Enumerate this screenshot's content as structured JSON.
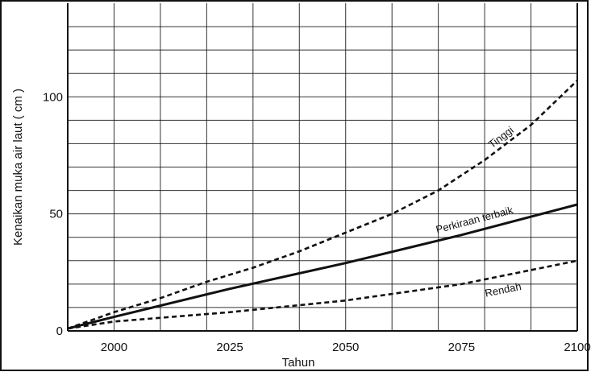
{
  "chart_data": {
    "type": "line",
    "title": "",
    "xlabel": "Tahun",
    "ylabel": "Kenaikan muka air laut  ( cm )",
    "xlim": [
      1990,
      2100
    ],
    "ylim": [
      0,
      140
    ],
    "x_ticks": [
      2000,
      2025,
      2050,
      2075,
      2100
    ],
    "x_tick_labels": [
      "2000",
      "2025",
      "2050",
      "2075",
      "2100"
    ],
    "y_ticks": [
      0,
      50,
      100
    ],
    "y_tick_labels": [
      "0",
      "50",
      "100"
    ],
    "grid": true,
    "legend": "none",
    "series": [
      {
        "name": "Tinggi",
        "style": "dashed",
        "x": [
          1990,
          2000,
          2010,
          2020,
          2030,
          2040,
          2050,
          2060,
          2070,
          2080,
          2090,
          2100
        ],
        "y": [
          1,
          8,
          14,
          21,
          27,
          34,
          42,
          50,
          60,
          73,
          88,
          107
        ]
      },
      {
        "name": "Perkiraan terbaik",
        "style": "solid",
        "x": [
          1990,
          2000,
          2025,
          2050,
          2075,
          2100
        ],
        "y": [
          1,
          6,
          18,
          29,
          41,
          54
        ]
      },
      {
        "name": "Rendah",
        "style": "dashed",
        "x": [
          1990,
          2000,
          2025,
          2050,
          2075,
          2100
        ],
        "y": [
          1,
          4,
          8,
          13,
          20,
          30
        ]
      }
    ],
    "colors": {
      "ink": "#111111",
      "background": "#ffffff"
    }
  }
}
